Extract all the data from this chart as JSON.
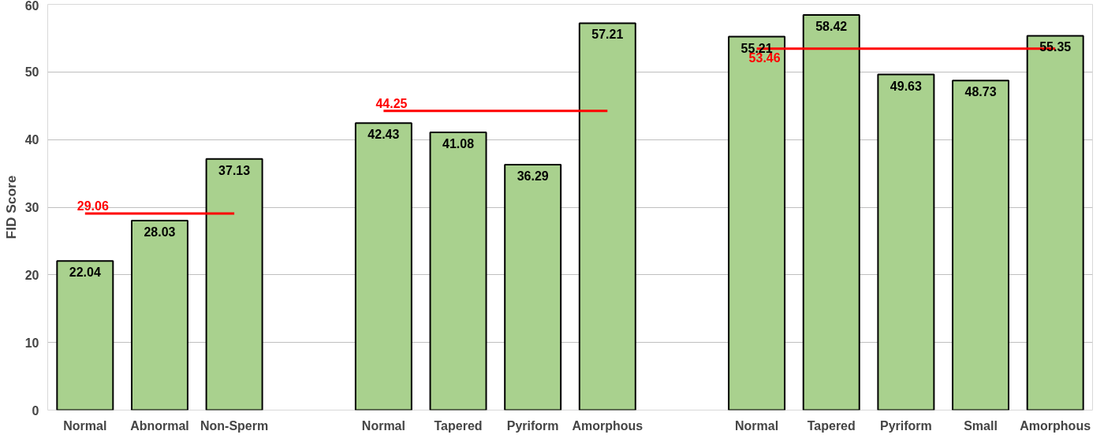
{
  "chart_data": {
    "type": "bar",
    "ylabel": "FID Score",
    "categories": [
      "Normal",
      "Abnormal",
      "Non-Sperm",
      null,
      "Normal",
      "Tapered",
      "Pyriform",
      "Amorphous",
      null,
      "Normal",
      "Tapered",
      "Pyriform",
      "Small",
      "Amorphous"
    ],
    "series": [
      {
        "color": "#a9d18e",
        "values": [
          22.04,
          28.03,
          37.13,
          null,
          42.43,
          41.08,
          36.29,
          57.21,
          null,
          55.21,
          58.42,
          49.63,
          48.73,
          55.35
        ],
        "data_labels": true
      },
      {
        "type": "line",
        "color": "#ff0000",
        "values": [
          29.06,
          29.06,
          29.06,
          null,
          null,
          null,
          null,
          null,
          null,
          null,
          null,
          null,
          null,
          null
        ],
        "value_labels": [
          "29.06",
          null,
          null,
          null,
          null,
          null,
          null,
          null,
          null,
          null,
          null,
          null,
          null,
          null
        ]
      },
      {
        "type": "line",
        "color": "#ff0000",
        "values": [
          null,
          null,
          null,
          null,
          44.25,
          44.25,
          44.25,
          44.25,
          null,
          null,
          null,
          null,
          null,
          null
        ],
        "value_labels": [
          null,
          null,
          null,
          null,
          "44.25",
          null,
          null,
          null,
          null,
          null,
          null,
          null,
          null,
          null
        ]
      },
      {
        "type": "line",
        "color": "#ff0000",
        "values": [
          null,
          null,
          null,
          null,
          null,
          null,
          null,
          null,
          null,
          53.46,
          53.46,
          53.46,
          53.46,
          53.46
        ],
        "value_labels": [
          null,
          null,
          null,
          null,
          null,
          null,
          null,
          null,
          null,
          "53.46",
          null,
          null,
          null,
          null
        ]
      }
    ],
    "ylim": [
      0,
      60
    ],
    "yticks": [
      0,
      10,
      20,
      30,
      40,
      50,
      60
    ],
    "grid": "y"
  }
}
